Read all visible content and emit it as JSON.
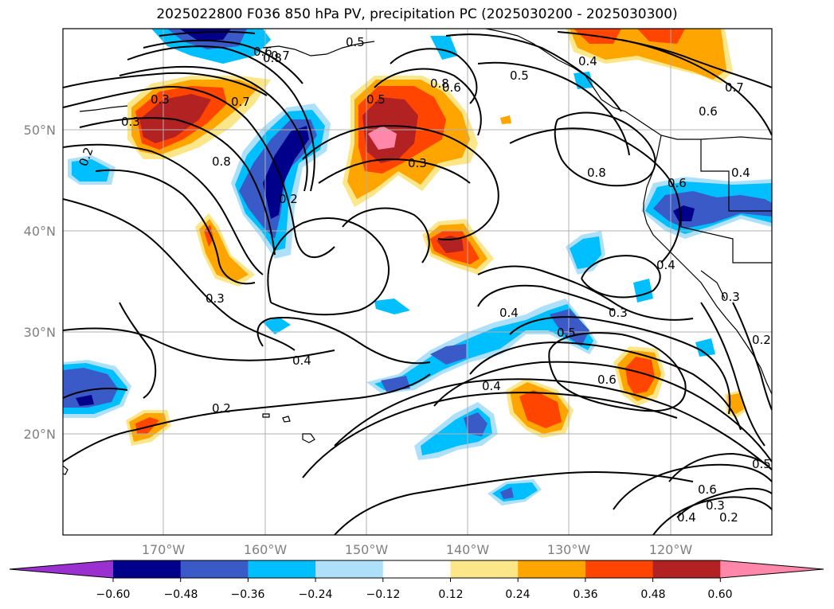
{
  "title": "2025022800 F036 850 hPa PV, precipitation PC (2025030200 - 2025030300)",
  "map": {
    "lon_labels": [
      "170°W",
      "160°W",
      "150°W",
      "140°W",
      "130°W",
      "120°W"
    ],
    "lat_labels": [
      "50°N",
      "40°N",
      "30°N",
      "20°N"
    ]
  },
  "contour_labels": [
    "0.2",
    "0.3",
    "0.3",
    "0.8",
    "0.7",
    "0.6",
    "0.8",
    "0.7",
    "0.5",
    "0.5",
    "0.4",
    "0.7",
    "0.6",
    "0.5",
    "0.4",
    "0.8",
    "0.6",
    "0.2",
    "0.3",
    "0.3",
    "0.4",
    "0.4",
    "0.5",
    "0.3",
    "0.3",
    "0.6",
    "0.4",
    "0.4",
    "0.2",
    "0.6",
    "0.4",
    "0.3",
    "0.2",
    "0.5",
    "0.2",
    "0.8",
    "0.6"
  ],
  "colorbar": {
    "ticks": [
      "−0.60",
      "−0.48",
      "−0.36",
      "−0.24",
      "−0.12",
      "0.12",
      "0.24",
      "0.36",
      "0.48",
      "0.60"
    ],
    "colors": [
      "#9b30d0",
      "#00008b",
      "#3a5bc7",
      "#00bfff",
      "#aee0fa",
      "#ffffff",
      "#fbe68a",
      "#ffa500",
      "#ff4500",
      "#b22222",
      "#ff88aa",
      "#ff88aa"
    ]
  }
}
